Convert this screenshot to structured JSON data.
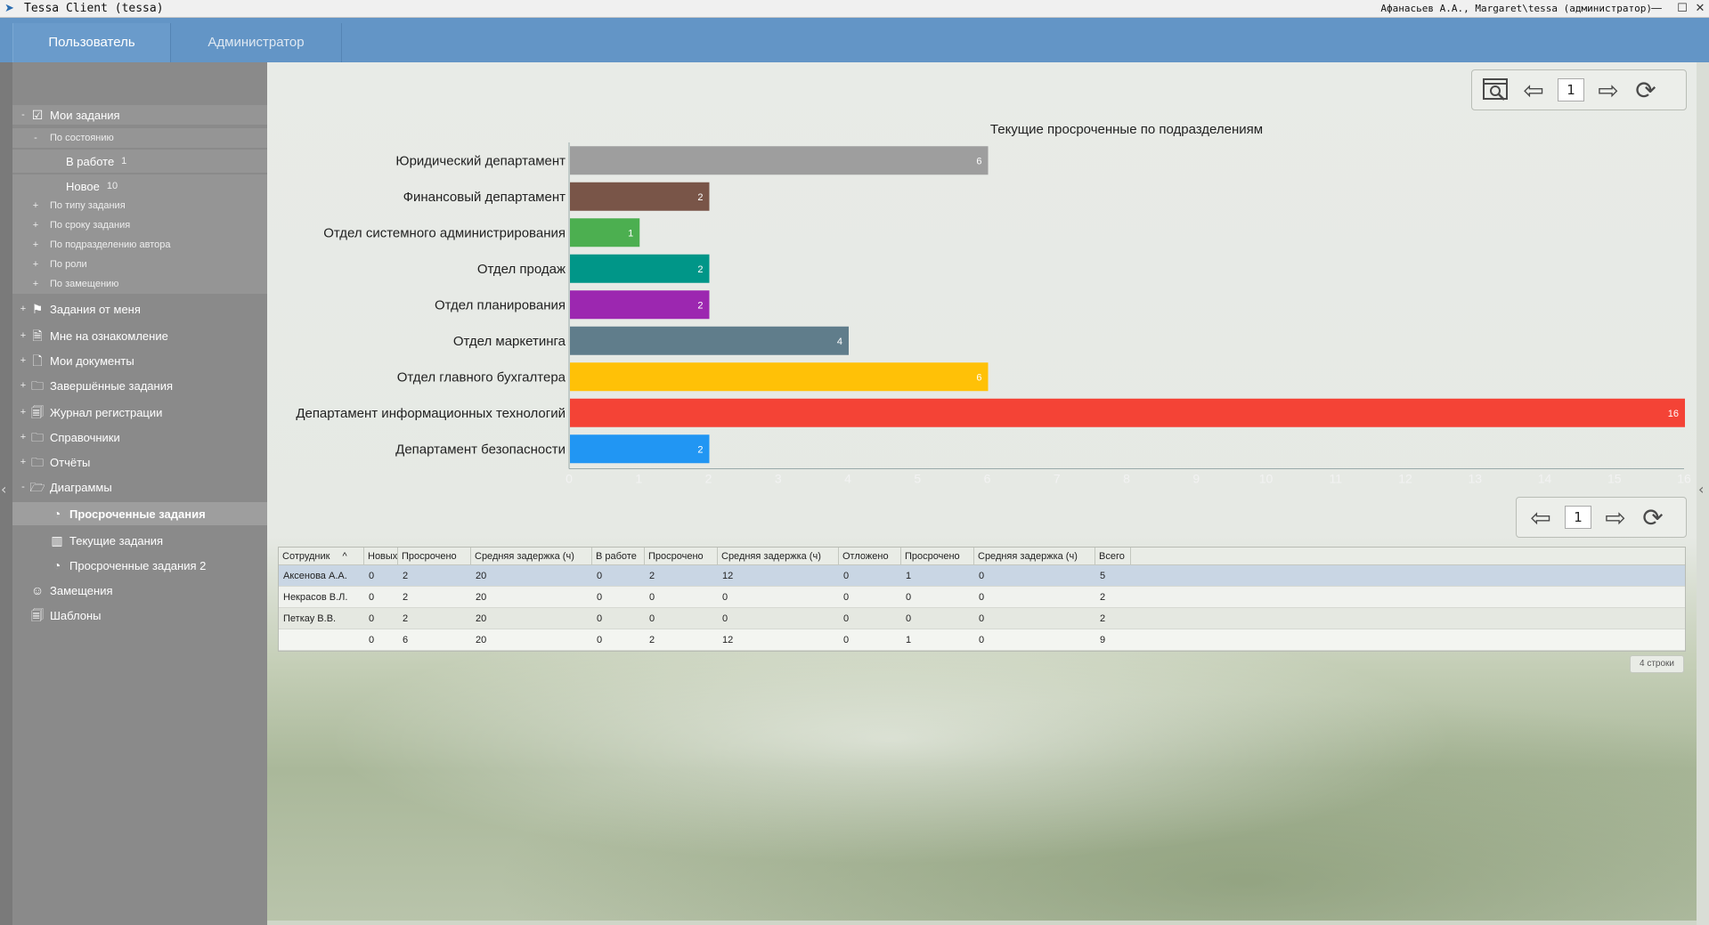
{
  "window": {
    "title": "Tessa Client (tessa)",
    "user": "Афанасьев А.А., Margaret\\tessa (администратор)",
    "icons": [
      "app-bird-icon",
      "minimize-icon",
      "maximize-icon",
      "close-icon"
    ]
  },
  "tabs": [
    {
      "label": "Пользователь",
      "active": true
    },
    {
      "label": "Администратор",
      "active": false
    }
  ],
  "sidebar": {
    "items": [
      {
        "label": "Мои задания",
        "toggle": "-",
        "icon": "clipboard-check-icon",
        "level": 0
      },
      {
        "label": "По состоянию",
        "toggle": "-",
        "level": 1
      },
      {
        "label": "В работе",
        "count": "1",
        "level": 2
      },
      {
        "label": "Новое",
        "count": "10",
        "level": 2
      },
      {
        "label": "По типу задания",
        "toggle": "+",
        "level": 1
      },
      {
        "label": "По сроку задания",
        "toggle": "+",
        "level": 1
      },
      {
        "label": "По подразделению автора",
        "toggle": "+",
        "level": 1
      },
      {
        "label": "По роли",
        "toggle": "+",
        "level": 1
      },
      {
        "label": "По замещению",
        "toggle": "+",
        "level": 1
      },
      {
        "label": "Задания от меня",
        "toggle": "+",
        "icon": "signpost-icon",
        "level": 0
      },
      {
        "label": "Мне на ознакомление",
        "toggle": "+",
        "icon": "document-eye-icon",
        "level": 0
      },
      {
        "label": "Мои документы",
        "toggle": "+",
        "icon": "document-icon",
        "level": 0
      },
      {
        "label": "Завершённые задания",
        "toggle": "+",
        "icon": "folder-icon",
        "level": 0
      },
      {
        "label": "Журнал регистрации",
        "toggle": "+",
        "icon": "journal-icon",
        "level": 0
      },
      {
        "label": "Справочники",
        "toggle": "+",
        "icon": "folder-icon",
        "level": 0
      },
      {
        "label": "Отчёты",
        "toggle": "+",
        "icon": "folder-icon",
        "level": 0
      },
      {
        "label": "Диаграммы",
        "toggle": "-",
        "icon": "folder-open-icon",
        "level": 0
      },
      {
        "label": "Просроченные задания",
        "icon": "pie-chart-icon",
        "level": 1,
        "selected": true
      },
      {
        "label": "Текущие задания",
        "icon": "bar-chart-icon",
        "level": 1
      },
      {
        "label": "Просроченные задания 2",
        "icon": "pie-chart-icon",
        "level": 1
      },
      {
        "label": "Замещения",
        "icon": "users-icon",
        "level": 0
      },
      {
        "label": "Шаблоны",
        "icon": "documents-icon",
        "level": 0
      }
    ]
  },
  "toolbar_top": {
    "page": "1",
    "icons": [
      "search-window-icon",
      "arrow-left-icon",
      "arrow-right-icon",
      "refresh-icon"
    ]
  },
  "toolbar_mid": {
    "page": "1",
    "icons": [
      "arrow-left-icon",
      "arrow-right-icon",
      "refresh-icon"
    ]
  },
  "chart_data": {
    "type": "bar",
    "orientation": "horizontal",
    "title": "Текущие просроченные по подразделениям",
    "categories": [
      "Юридический департамент",
      "Финансовый департамент",
      "Отдел системного администрирования",
      "Отдел продаж",
      "Отдел планирования",
      "Отдел маркетинга",
      "Отдел главного бухгалтера",
      "Департамент информационных технологий",
      "Департамент безопасности"
    ],
    "values": [
      6,
      2,
      1,
      2,
      2,
      4,
      6,
      16,
      2
    ],
    "colors": [
      "#9e9e9e",
      "#795548",
      "#4caf50",
      "#009688",
      "#9c27b0",
      "#607d8b",
      "#ffc107",
      "#f44336",
      "#2196f3"
    ],
    "xlim": [
      0,
      16
    ],
    "xticks": [
      "0",
      "1",
      "2",
      "3",
      "4",
      "5",
      "6",
      "7",
      "8",
      "9",
      "10",
      "11",
      "12",
      "13",
      "14",
      "15",
      "16"
    ],
    "grid": false,
    "legend": "none"
  },
  "table": {
    "columns": [
      "Сотрудник",
      "Новых",
      "Просрочено",
      "Средняя задержка (ч)",
      "В работе",
      "Просрочено",
      "Средняя задержка (ч)",
      "Отложено",
      "Просрочено",
      "Средняя задержка (ч)",
      "Всего"
    ],
    "sort_indicator": "^",
    "rows": [
      [
        "Аксенова А.А.",
        "0",
        "2",
        "20",
        "0",
        "2",
        "12",
        "0",
        "1",
        "0",
        "5"
      ],
      [
        "Некрасов В.Л.",
        "0",
        "2",
        "20",
        "0",
        "0",
        "0",
        "0",
        "0",
        "0",
        "2"
      ],
      [
        "Петкау В.В.",
        "0",
        "2",
        "20",
        "0",
        "0",
        "0",
        "0",
        "0",
        "0",
        "2"
      ],
      [
        "",
        "0",
        "6",
        "20",
        "0",
        "2",
        "12",
        "0",
        "1",
        "0",
        "9"
      ]
    ],
    "row_count": "4 строки"
  }
}
